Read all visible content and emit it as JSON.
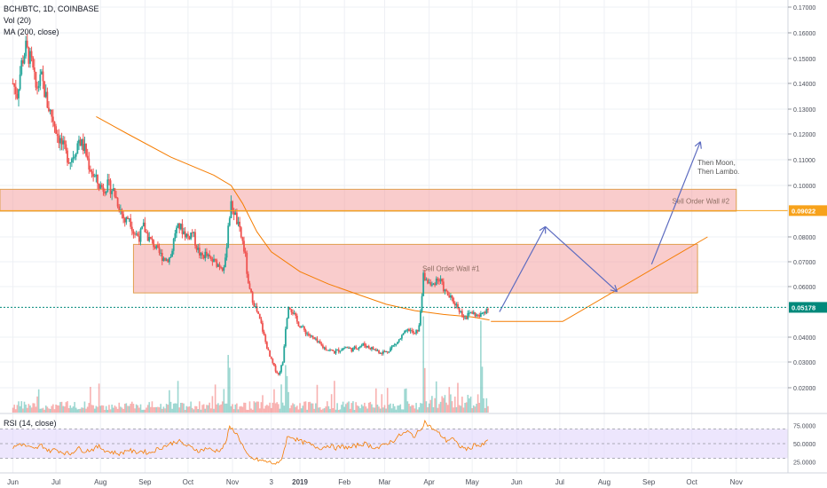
{
  "legend": {
    "symbol": "BCH/BTC, 1D, COINBASE",
    "volume": "Vol (20)",
    "ma": "MA (200, close)",
    "rsi": "RSI (14, close)"
  },
  "colors": {
    "up": "#26a69a",
    "down": "#ef5350",
    "ma": "#f57c00",
    "zone_fill": "#f4a3a3",
    "zone_border": "#e0a050",
    "arrow": "#5c6bc0",
    "rsi_line": "#f57c00",
    "rsi_band": "#e1d5fb",
    "price_badge": "#00897b",
    "level_badge": "#f7a21b"
  },
  "chart_data": {
    "type": "candlestick",
    "title": "BCH/BTC, 1D, COINBASE",
    "price_axis": {
      "ticks": [
        "0.17000",
        "0.16000",
        "0.15000",
        "0.14000",
        "0.13000",
        "0.12000",
        "0.11000",
        "0.10000",
        "0.08000",
        "0.07000",
        "0.06000",
        "0.04000",
        "0.03000",
        "0.02000"
      ],
      "tick_values": [
        0.17,
        0.16,
        0.15,
        0.14,
        0.13,
        0.12,
        0.11,
        0.1,
        0.08,
        0.07,
        0.06,
        0.04,
        0.03,
        0.02
      ],
      "range": [
        0.01,
        0.175
      ]
    },
    "time_axis": {
      "ticks": [
        "Jun",
        "Jul",
        "Aug",
        "Sep",
        "Oct",
        "Nov",
        "3",
        "2019",
        "Feb",
        "Mar",
        "Apr",
        "May",
        "Jun",
        "Jul",
        "Aug",
        "Sep",
        "Oct",
        "Nov"
      ],
      "tick_index": [
        0,
        30,
        61,
        92,
        122,
        153,
        180,
        200,
        231,
        259,
        290,
        320,
        351,
        381,
        412,
        443,
        473,
        504
      ],
      "range": [
        -9,
        540
      ]
    },
    "current_price": "0.05178",
    "current_price_value": 0.05178,
    "level_line": "0.09022",
    "level_line_value": 0.09022,
    "price_path": [
      [
        0,
        0.14
      ],
      [
        3,
        0.136
      ],
      [
        6,
        0.148
      ],
      [
        9,
        0.154
      ],
      [
        13,
        0.148
      ],
      [
        16,
        0.138
      ],
      [
        20,
        0.142
      ],
      [
        24,
        0.132
      ],
      [
        28,
        0.126
      ],
      [
        31,
        0.12
      ],
      [
        34,
        0.116
      ],
      [
        37,
        0.112
      ],
      [
        40,
        0.11
      ],
      [
        43,
        0.113
      ],
      [
        46,
        0.118
      ],
      [
        50,
        0.114
      ],
      [
        53,
        0.108
      ],
      [
        56,
        0.104
      ],
      [
        60,
        0.1
      ],
      [
        63,
        0.099
      ],
      [
        66,
        0.1
      ],
      [
        70,
        0.098
      ],
      [
        74,
        0.092
      ],
      [
        78,
        0.086
      ],
      [
        81,
        0.088
      ],
      [
        84,
        0.082
      ],
      [
        88,
        0.08
      ],
      [
        91,
        0.084
      ],
      [
        94,
        0.08
      ],
      [
        98,
        0.077
      ],
      [
        101,
        0.074
      ],
      [
        104,
        0.072
      ],
      [
        107,
        0.071
      ],
      [
        110,
        0.072
      ],
      [
        113,
        0.082
      ],
      [
        116,
        0.084
      ],
      [
        119,
        0.082
      ],
      [
        122,
        0.08
      ],
      [
        125,
        0.082
      ],
      [
        128,
        0.076
      ],
      [
        131,
        0.072
      ],
      [
        134,
        0.073
      ],
      [
        137,
        0.071
      ],
      [
        140,
        0.07
      ],
      [
        143,
        0.069
      ],
      [
        146,
        0.068
      ],
      [
        148,
        0.07
      ],
      [
        150,
        0.085
      ],
      [
        152,
        0.092
      ],
      [
        154,
        0.09
      ],
      [
        156,
        0.086
      ],
      [
        158,
        0.082
      ],
      [
        160,
        0.078
      ],
      [
        162,
        0.072
      ],
      [
        164,
        0.06
      ],
      [
        167,
        0.055
      ],
      [
        170,
        0.05
      ],
      [
        173,
        0.045
      ],
      [
        176,
        0.038
      ],
      [
        179,
        0.032
      ],
      [
        182,
        0.028
      ],
      [
        185,
        0.025
      ],
      [
        188,
        0.03
      ],
      [
        190,
        0.044
      ],
      [
        192,
        0.053
      ],
      [
        195,
        0.05
      ],
      [
        198,
        0.046
      ],
      [
        201,
        0.044
      ],
      [
        204,
        0.042
      ],
      [
        208,
        0.04
      ],
      [
        212,
        0.038
      ],
      [
        216,
        0.036
      ],
      [
        220,
        0.035
      ],
      [
        224,
        0.034
      ],
      [
        228,
        0.035
      ],
      [
        232,
        0.036
      ],
      [
        236,
        0.035
      ],
      [
        240,
        0.036
      ],
      [
        244,
        0.037
      ],
      [
        248,
        0.036
      ],
      [
        252,
        0.035
      ],
      [
        256,
        0.034
      ],
      [
        260,
        0.034
      ],
      [
        264,
        0.036
      ],
      [
        268,
        0.038
      ],
      [
        272,
        0.041
      ],
      [
        276,
        0.043
      ],
      [
        280,
        0.041
      ],
      [
        283,
        0.044
      ],
      [
        286,
        0.064
      ],
      [
        289,
        0.062
      ],
      [
        292,
        0.06
      ],
      [
        295,
        0.063
      ],
      [
        298,
        0.062
      ],
      [
        301,
        0.058
      ],
      [
        304,
        0.056
      ],
      [
        307,
        0.054
      ],
      [
        310,
        0.052
      ],
      [
        313,
        0.049
      ],
      [
        316,
        0.048
      ],
      [
        319,
        0.05
      ],
      [
        322,
        0.049
      ],
      [
        325,
        0.048
      ],
      [
        328,
        0.05
      ],
      [
        331,
        0.0518
      ]
    ],
    "ma_200": [
      [
        58,
        0.127
      ],
      [
        80,
        0.12
      ],
      [
        110,
        0.111
      ],
      [
        140,
        0.104
      ],
      [
        152,
        0.1
      ],
      [
        160,
        0.093
      ],
      [
        170,
        0.082
      ],
      [
        180,
        0.074
      ],
      [
        200,
        0.066
      ],
      [
        220,
        0.061
      ],
      [
        240,
        0.057
      ],
      [
        260,
        0.053
      ],
      [
        280,
        0.0505
      ],
      [
        300,
        0.049
      ],
      [
        320,
        0.048
      ],
      [
        332,
        0.0468
      ]
    ],
    "projection_ma": [
      [
        333,
        0.0462
      ],
      [
        383,
        0.0462
      ],
      [
        484,
        0.08
      ]
    ],
    "projection_arrows": [
      [
        [
          339,
          0.05
        ],
        [
          371,
          0.084
        ]
      ],
      [
        [
          371,
          0.084
        ],
        [
          421,
          0.058
        ]
      ],
      [
        [
          445,
          0.069
        ],
        [
          479,
          0.117
        ]
      ]
    ],
    "zones": [
      {
        "label": "Sell Order Wall #2",
        "x": [
          -9,
          504
        ],
        "y": [
          0.09,
          0.0985
        ]
      },
      {
        "label": "Sell Order Wall #1",
        "x": [
          84,
          477
        ],
        "y": [
          0.0575,
          0.077
        ]
      }
    ],
    "annotations": [
      {
        "text": "Then Moon,",
        "x": 477,
        "y": 0.108
      },
      {
        "text": "Then Lambo.",
        "x": 477,
        "y": 0.1045
      }
    ],
    "rsi": {
      "title": "RSI (14, close)",
      "ticks": [
        "75.0000",
        "50.0000",
        "25.0000"
      ],
      "tick_values": [
        75,
        50,
        25
      ],
      "band": [
        30,
        70
      ],
      "range": [
        10,
        90
      ],
      "path": [
        [
          0,
          44
        ],
        [
          5,
          50
        ],
        [
          10,
          46
        ],
        [
          15,
          42
        ],
        [
          20,
          48
        ],
        [
          25,
          40
        ],
        [
          30,
          42
        ],
        [
          35,
          38
        ],
        [
          40,
          36
        ],
        [
          45,
          44
        ],
        [
          50,
          40
        ],
        [
          55,
          42
        ],
        [
          60,
          46
        ],
        [
          65,
          40
        ],
        [
          70,
          38
        ],
        [
          75,
          36
        ],
        [
          80,
          42
        ],
        [
          85,
          38
        ],
        [
          90,
          40
        ],
        [
          95,
          37
        ],
        [
          100,
          42
        ],
        [
          105,
          46
        ],
        [
          110,
          50
        ],
        [
          115,
          54
        ],
        [
          120,
          48
        ],
        [
          125,
          44
        ],
        [
          130,
          40
        ],
        [
          135,
          44
        ],
        [
          140,
          40
        ],
        [
          145,
          42
        ],
        [
          148,
          50
        ],
        [
          151,
          72
        ],
        [
          154,
          68
        ],
        [
          157,
          60
        ],
        [
          160,
          48
        ],
        [
          163,
          34
        ],
        [
          166,
          30
        ],
        [
          170,
          28
        ],
        [
          175,
          26
        ],
        [
          180,
          24
        ],
        [
          185,
          22
        ],
        [
          188,
          34
        ],
        [
          191,
          58
        ],
        [
          194,
          60
        ],
        [
          198,
          55
        ],
        [
          202,
          52
        ],
        [
          206,
          50
        ],
        [
          210,
          46
        ],
        [
          215,
          44
        ],
        [
          220,
          48
        ],
        [
          225,
          44
        ],
        [
          230,
          46
        ],
        [
          235,
          44
        ],
        [
          240,
          48
        ],
        [
          245,
          50
        ],
        [
          250,
          46
        ],
        [
          255,
          44
        ],
        [
          260,
          50
        ],
        [
          265,
          54
        ],
        [
          270,
          62
        ],
        [
          275,
          66
        ],
        [
          280,
          60
        ],
        [
          284,
          70
        ],
        [
          287,
          80
        ],
        [
          290,
          74
        ],
        [
          294,
          68
        ],
        [
          298,
          62
        ],
        [
          302,
          54
        ],
        [
          306,
          58
        ],
        [
          310,
          48
        ],
        [
          314,
          44
        ],
        [
          318,
          42
        ],
        [
          322,
          50
        ],
        [
          326,
          46
        ],
        [
          331,
          54
        ]
      ]
    }
  }
}
